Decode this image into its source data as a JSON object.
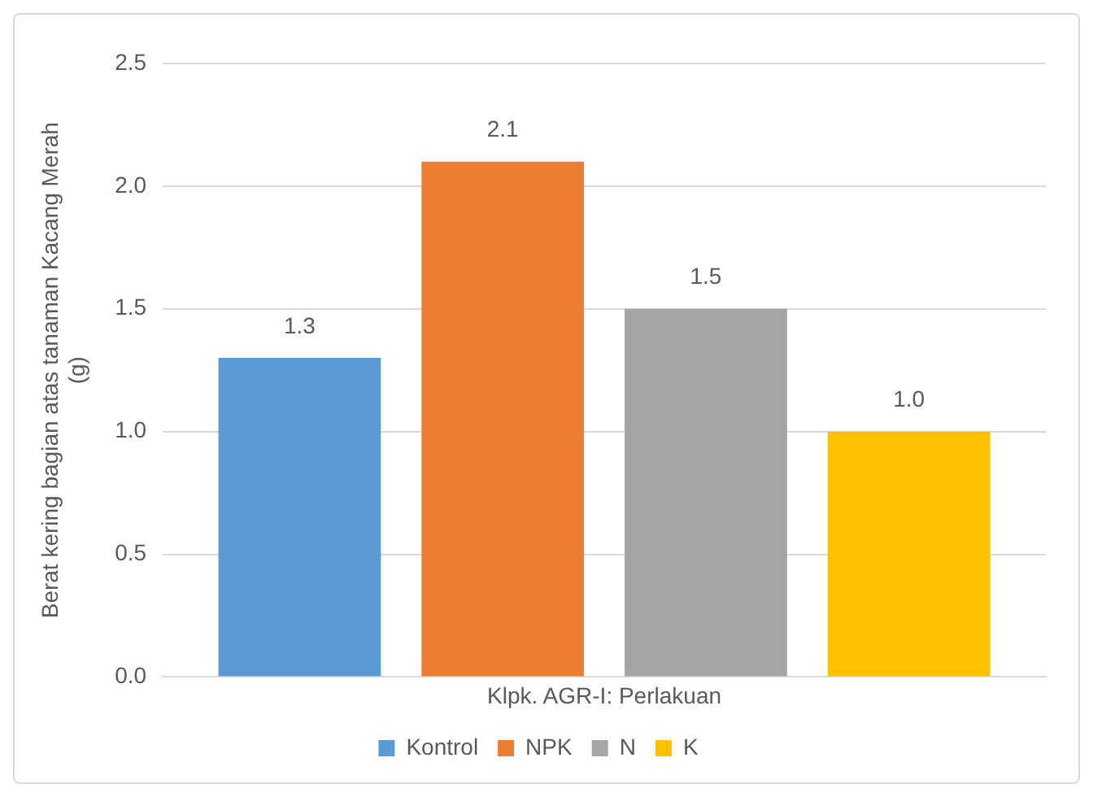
{
  "chart_data": {
    "type": "bar",
    "xlabel": "Klpk. AGR-I: Perlakuan",
    "ylabel": "Berat kering bagian atas tanaman Kacang Merah (g)",
    "categories": [
      null
    ],
    "series": [
      {
        "name": "Kontrol",
        "color": "#5b9bd5",
        "values": [
          1.3
        ],
        "value_labels": [
          "1.3"
        ]
      },
      {
        "name": "NPK",
        "color": "#ed7d31",
        "values": [
          2.1
        ],
        "value_labels": [
          "2.1"
        ]
      },
      {
        "name": "N",
        "color": "#a5a5a5",
        "values": [
          1.5
        ],
        "value_labels": [
          "1.5"
        ]
      },
      {
        "name": "K",
        "color": "#ffc000",
        "values": [
          1.0
        ],
        "value_labels": [
          "1.0"
        ]
      }
    ],
    "ylim": [
      0,
      2.5
    ],
    "yticks": [
      {
        "value": 0,
        "label": "0.0"
      },
      0.5,
      {
        "value": 1,
        "label": "1.0"
      },
      1.5,
      {
        "value": 2,
        "label": "2.0"
      },
      2.5
    ],
    "grid": "y",
    "legend": "bottom"
  }
}
